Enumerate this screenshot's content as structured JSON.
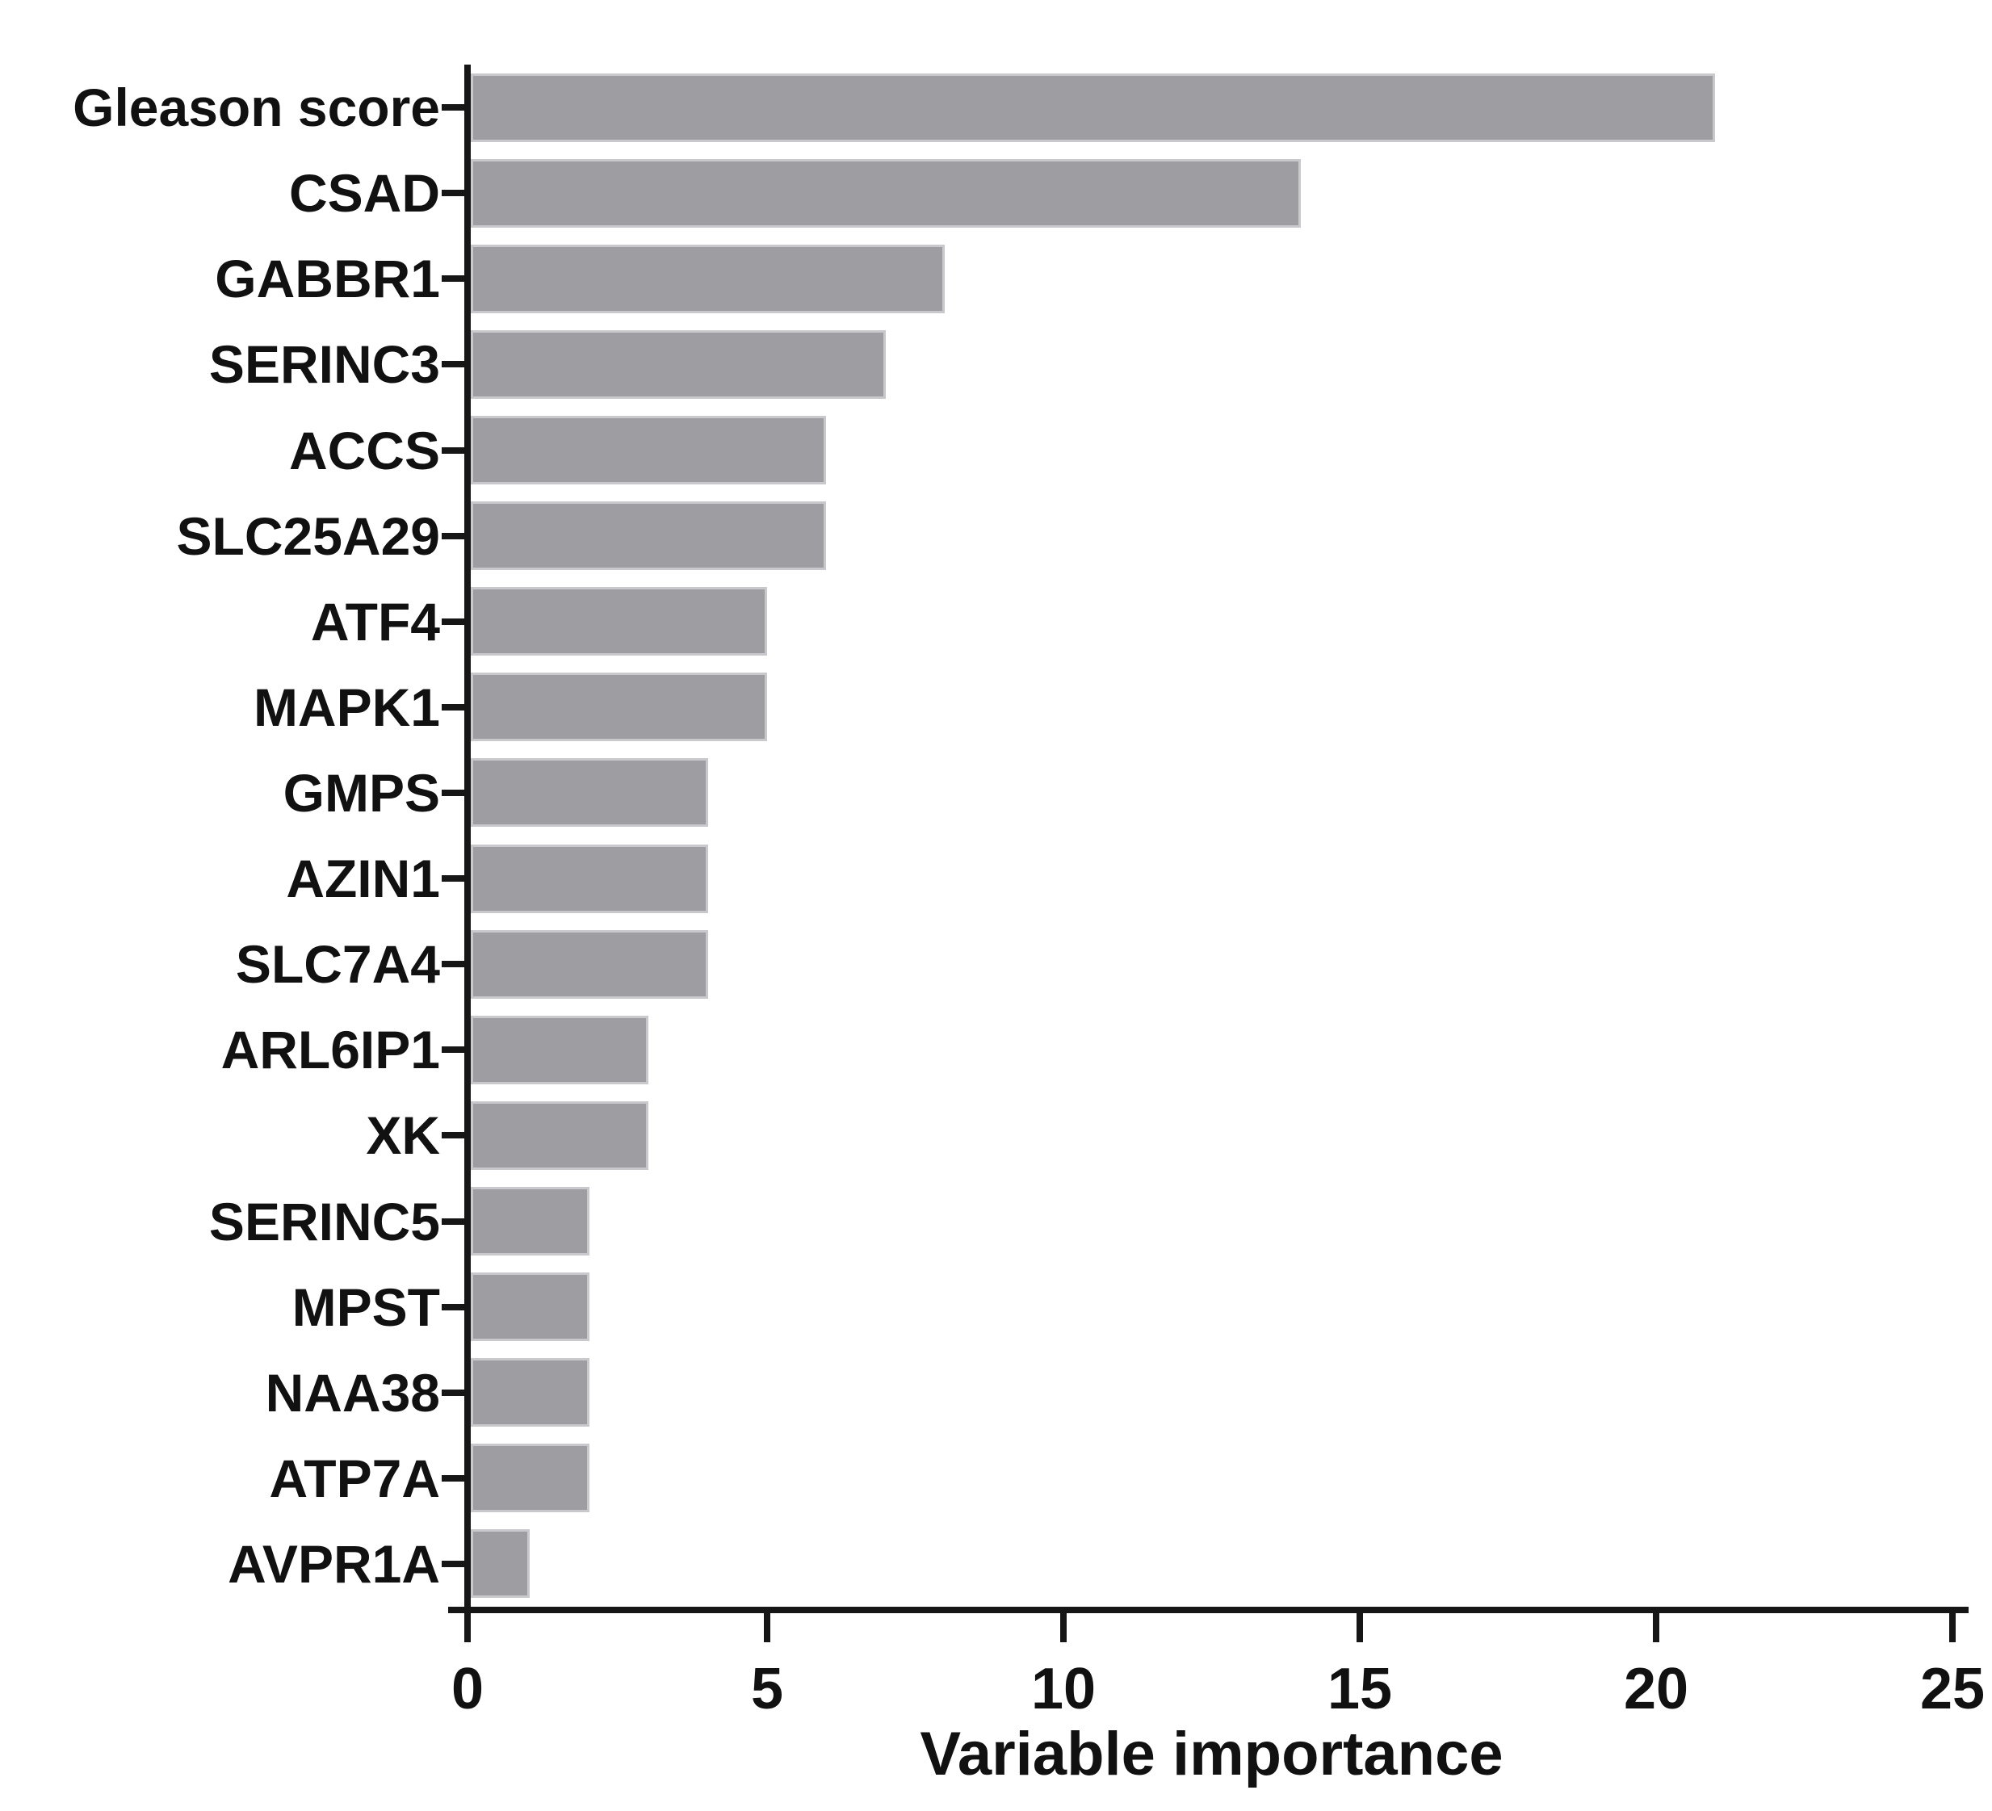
{
  "chart_data": {
    "type": "bar",
    "orientation": "horizontal",
    "xlabel": "Variable importance",
    "xlim": [
      0,
      25
    ],
    "xticks": [
      0,
      5,
      10,
      15,
      20,
      25
    ],
    "grid": false,
    "bar_color": "#9d9da2",
    "bar_border_color": "#c9c9cd",
    "axis_color": "#161616",
    "categories": [
      "Gleason score",
      "CSAD",
      "GABBR1",
      "SERINC3",
      "ACCS",
      "SLC25A29",
      "ATF4",
      "MAPK1",
      "GMPS",
      "AZIN1",
      "SLC7A4",
      "ARL6IP1",
      "XK",
      "SERINC5",
      "MPST",
      "NAA38",
      "ATP7A",
      "AVPR1A"
    ],
    "values": [
      21,
      14,
      8,
      7,
      6,
      6,
      5,
      5,
      4,
      4,
      4,
      3,
      3,
      2,
      2,
      2,
      2,
      1
    ]
  }
}
